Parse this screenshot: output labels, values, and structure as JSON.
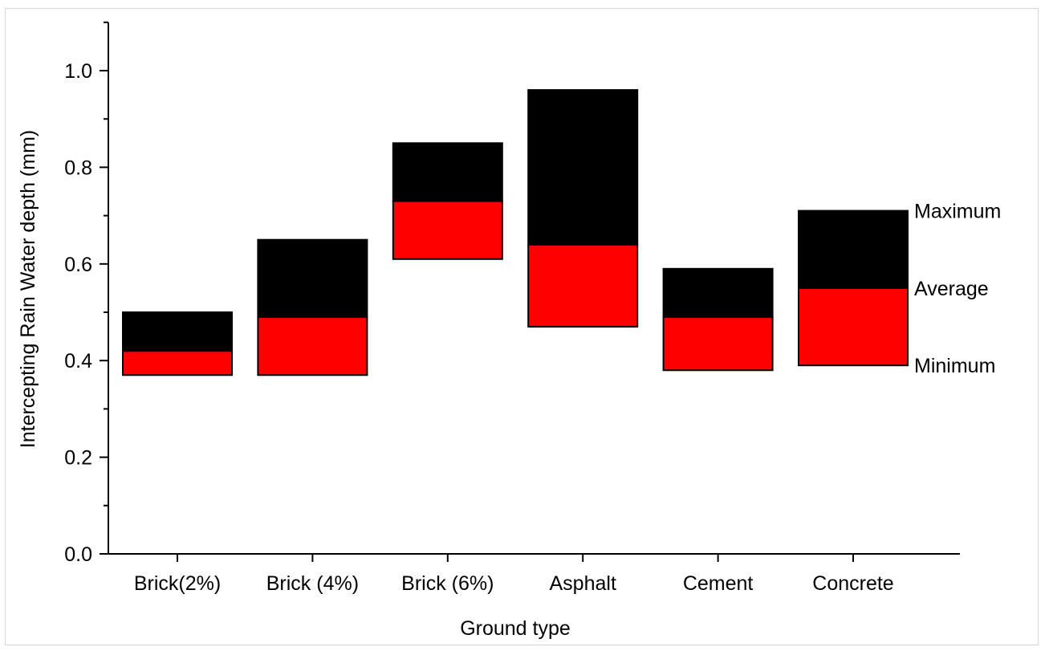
{
  "chart_data": {
    "type": "bar",
    "subtype": "floating-range",
    "categories": [
      "Brick(2%)",
      "Brick (4%)",
      "Brick (6%)",
      "Asphalt",
      "Cement",
      "Concrete"
    ],
    "series": [
      {
        "name": "Minimum",
        "values": [
          0.37,
          0.37,
          0.61,
          0.47,
          0.38,
          0.39
        ]
      },
      {
        "name": "Average",
        "values": [
          0.42,
          0.49,
          0.73,
          0.64,
          0.49,
          0.55
        ]
      },
      {
        "name": "Maximum",
        "values": [
          0.5,
          0.65,
          0.85,
          0.96,
          0.59,
          0.71
        ]
      }
    ],
    "colors": {
      "lower_segment": "#ff0000",
      "upper_segment": "#000000"
    },
    "annotations": [
      "Maximum",
      "Average",
      "Minimum"
    ],
    "xlabel": "Ground type",
    "ylabel": "Intercepting Rain Water depth (mm)",
    "ylim": [
      0,
      1.1
    ],
    "yticks": [
      "0.0",
      "0.2",
      "0.4",
      "0.6",
      "0.8",
      "1.0"
    ],
    "grid": false
  }
}
